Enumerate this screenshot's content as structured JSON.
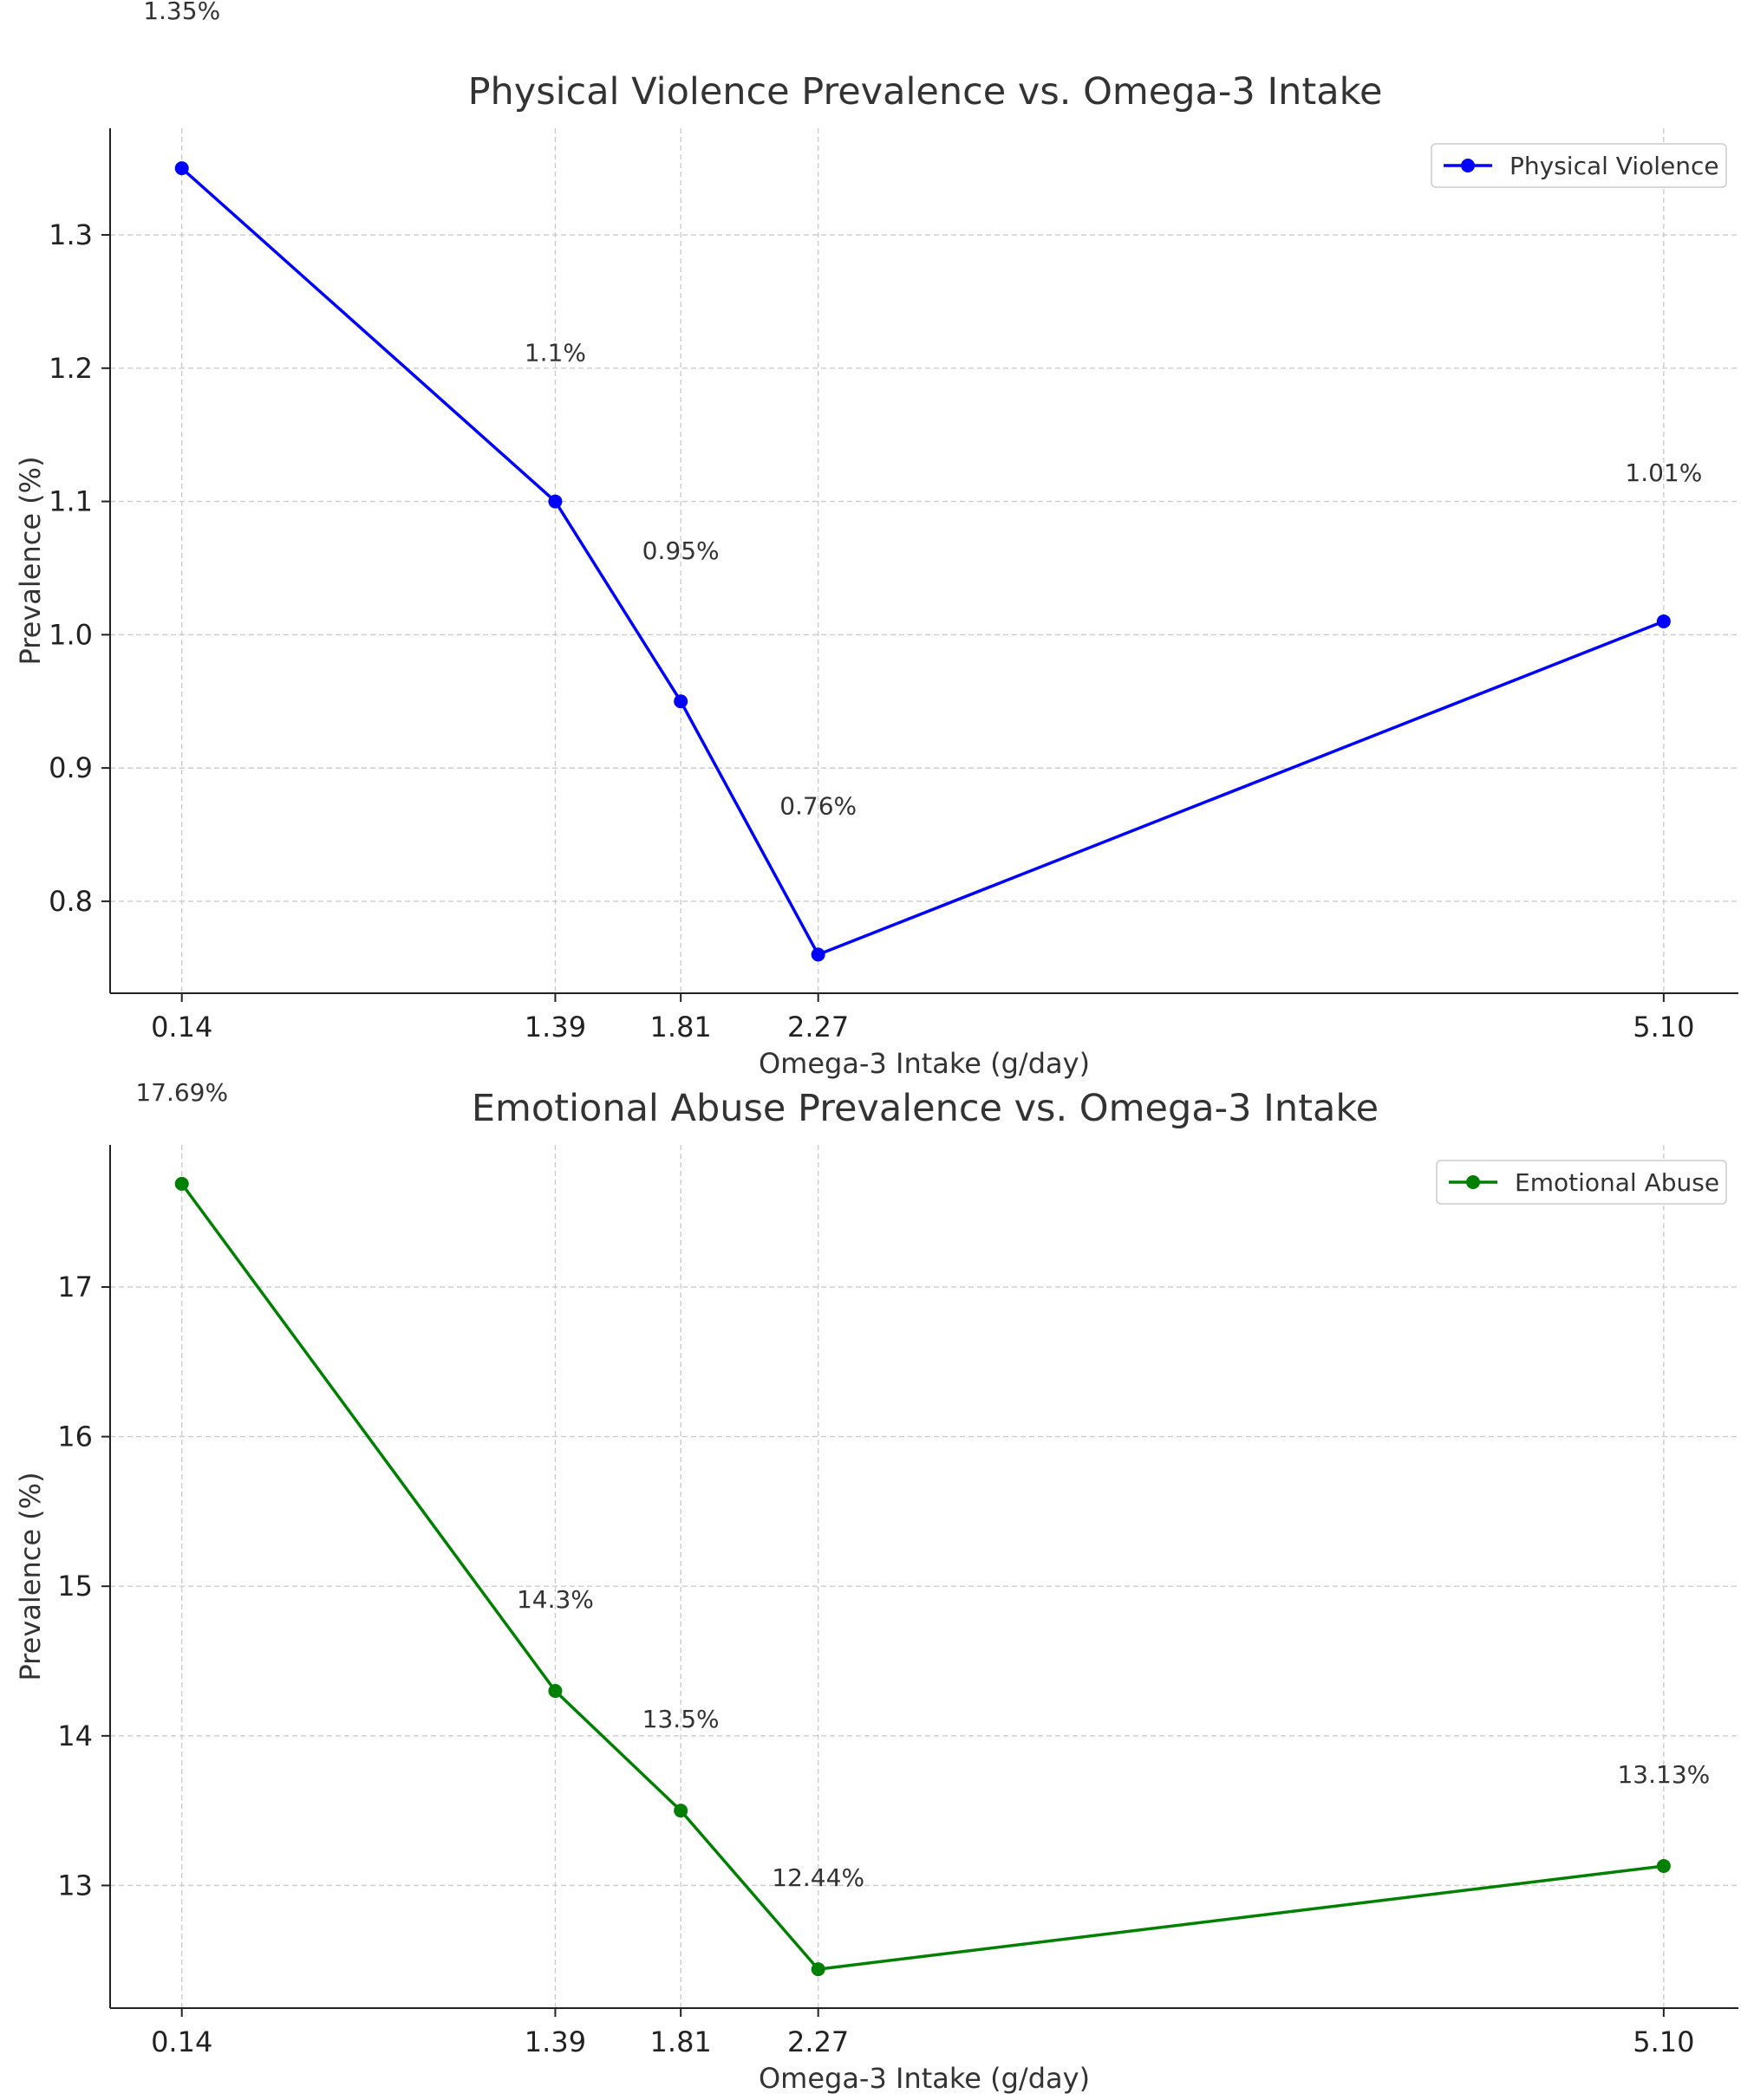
{
  "chart_data": [
    {
      "type": "line",
      "title": "Physical Violence Prevalence vs. Omega-3 Intake",
      "xlabel": "Omega-3 Intake (g/day)",
      "ylabel": "Prevalence (%)",
      "x": [
        0.14,
        1.39,
        1.81,
        2.27,
        5.1
      ],
      "x_tick_labels": [
        "0.14",
        "1.39",
        "1.81",
        "2.27",
        "5.10"
      ],
      "y_ticks": [
        0.8,
        0.9,
        1.0,
        1.1,
        1.2,
        1.3
      ],
      "y_tick_labels": [
        "0.8",
        "0.9",
        "1.0",
        "1.1",
        "1.2",
        "1.3"
      ],
      "xlim": [
        -0.1,
        5.35
      ],
      "ylim": [
        0.731,
        1.38
      ],
      "grid": true,
      "legend_position": "top-right",
      "series": [
        {
          "name": "Physical Violence",
          "color": "#0000ff",
          "values": [
            1.35,
            1.1,
            0.95,
            0.76,
            1.01
          ],
          "data_labels": [
            "1.35%",
            "1.1%",
            "0.95%",
            "0.76%",
            "1.01%"
          ]
        }
      ]
    },
    {
      "type": "line",
      "title": "Emotional Abuse Prevalence vs. Omega-3 Intake",
      "xlabel": "Omega-3 Intake (g/day)",
      "ylabel": "Prevalence (%)",
      "x": [
        0.14,
        1.39,
        1.81,
        2.27,
        5.1
      ],
      "x_tick_labels": [
        "0.14",
        "1.39",
        "1.81",
        "2.27",
        "5.10"
      ],
      "y_ticks": [
        13,
        14,
        15,
        16,
        17
      ],
      "y_tick_labels": [
        "13",
        "14",
        "15",
        "16",
        "17"
      ],
      "xlim": [
        -0.1,
        5.35
      ],
      "ylim": [
        12.18,
        17.95
      ],
      "grid": true,
      "legend_position": "top-right",
      "series": [
        {
          "name": "Emotional Abuse",
          "color": "#008000",
          "values": [
            17.69,
            14.3,
            13.5,
            12.44,
            13.13
          ],
          "data_labels": [
            "17.69%",
            "14.3%",
            "13.5%",
            "12.44%",
            "13.13%"
          ]
        }
      ]
    }
  ]
}
